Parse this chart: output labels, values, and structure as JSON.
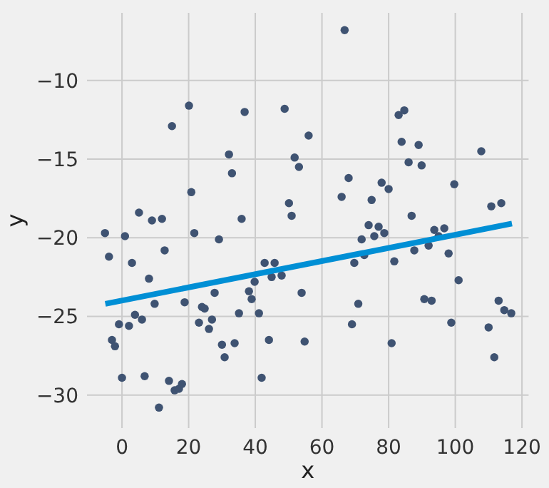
{
  "chart_data": {
    "type": "scatter",
    "xlabel": "x",
    "ylabel": "y",
    "xlim": [
      -10.5,
      122
    ],
    "ylim": [
      -32.1,
      -5.7
    ],
    "xticks": [
      0,
      20,
      40,
      60,
      80,
      100,
      120
    ],
    "yticks": [
      {
        "value": -30,
        "label": "−30"
      },
      {
        "value": -25,
        "label": "−25"
      },
      {
        "value": -20,
        "label": "−20"
      },
      {
        "value": -15,
        "label": "−15"
      },
      {
        "value": -10,
        "label": "−10"
      }
    ],
    "grid": true,
    "series": [
      {
        "color": "#3f5372",
        "marker": "circle",
        "x": [
          20.1,
          15,
          36.8,
          48.8,
          56,
          32.1,
          51.8,
          53.1,
          33,
          20.8,
          50.1,
          50.9,
          5.1,
          9,
          12,
          35.9,
          66.8,
          83,
          84.7,
          83.9,
          89,
          107.8,
          86,
          89.9,
          68,
          77.9,
          80,
          65.9,
          74.9,
          99.7,
          86.9,
          74,
          77,
          110.8,
          113.8,
          21.7,
          -5.1,
          0.9,
          -3.9,
          3,
          12.8,
          29.1,
          8.1,
          9.8,
          18.8,
          27.8,
          24,
          24.8,
          27,
          23.1,
          26.1,
          3.9,
          6,
          -0.9,
          2.1,
          -3,
          -2.1,
          30,
          33.8,
          30.8,
          35.1,
          38.1,
          38.9,
          39.8,
          41.1,
          42.8,
          45.8,
          44.9,
          47.9,
          44.1,
          53.9,
          54.8,
          0,
          6.8,
          41.9,
          14.1,
          15.8,
          17.1,
          18,
          11.1,
          71.9,
          75.7,
          78.7,
          72.7,
          69.7,
          81.7,
          87.7,
          92,
          93.7,
          96.7,
          95,
          98,
          101,
          90.7,
          92.9,
          70.9,
          69,
          98.8,
          80.9,
          110,
          113,
          114.7,
          116.8,
          111.7
        ],
        "values": [
          -11.6,
          -12.9,
          -12,
          -11.8,
          -13.5,
          -14.7,
          -14.9,
          -15.5,
          -15.9,
          -17.1,
          -17.8,
          -18.6,
          -18.4,
          -18.9,
          -18.8,
          -18.8,
          -6.8,
          -12.2,
          -11.9,
          -13.9,
          -14.1,
          -14.5,
          -15.2,
          -15.4,
          -16.2,
          -16.5,
          -16.9,
          -17.4,
          -17.6,
          -16.6,
          -18.6,
          -19.2,
          -19.3,
          -18,
          -17.8,
          -19.7,
          -19.7,
          -19.9,
          -21.2,
          -21.6,
          -20.8,
          -20.1,
          -22.6,
          -24.2,
          -24.1,
          -23.5,
          -24.4,
          -24.5,
          -25.2,
          -25.4,
          -25.8,
          -24.9,
          -25.2,
          -25.5,
          -25.6,
          -26.5,
          -26.9,
          -26.8,
          -26.7,
          -27.6,
          -24.8,
          -23.4,
          -23.9,
          -22.8,
          -24.8,
          -21.6,
          -21.6,
          -22.5,
          -22.4,
          -26.5,
          -23.5,
          -26.6,
          -28.9,
          -28.8,
          -28.9,
          -29.1,
          -29.7,
          -29.6,
          -29.3,
          -30.8,
          -20.1,
          -19.9,
          -19.7,
          -21.1,
          -21.6,
          -21.5,
          -20.8,
          -20.5,
          -19.5,
          -19.4,
          -19.9,
          -21,
          -22.7,
          -23.9,
          -24,
          -24.2,
          -25.5,
          -25.4,
          -26.7,
          -25.7,
          -24,
          -24.6,
          -24.8,
          -27.6
        ]
      },
      {
        "type": "line",
        "color": "#008fd5",
        "marker": "none",
        "line_style": "solid",
        "x": [
          -5,
          117
        ],
        "values": [
          -24.2,
          -19.1
        ]
      }
    ]
  }
}
